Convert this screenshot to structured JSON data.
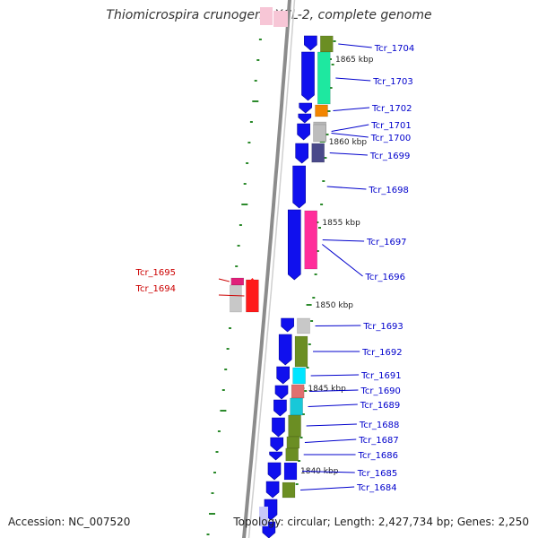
{
  "title": "Thiomicrospira crunogena XCL-2, complete genome",
  "footer": {
    "accession": "Accession: NC_007520",
    "topology": "Topology: circular; Length: 2,427,734 bp; Genes: 2,250"
  },
  "colors": {
    "backbone": "#8c8c8c",
    "tick_green": "#2c8a2c",
    "label_blue": "#0000cc",
    "label_red": "#cc0000",
    "kbp_text": "#222222",
    "gene_blue": "#1010ee",
    "gene_red": "#ff1a1a"
  },
  "scale_marks": [
    "1865 kbp",
    "1860 kbp",
    "1855 kbp",
    "1850 kbp",
    "1845 kbp",
    "1840 kbp"
  ],
  "genes": [
    {
      "label": "Tcr_1704",
      "strand": "+",
      "color": "#6b8e23"
    },
    {
      "label": "Tcr_1703",
      "strand": "+",
      "color": "#1ee8a0"
    },
    {
      "label": "Tcr_1702",
      "strand": "+",
      "color": "#f28500"
    },
    {
      "label": "Tcr_1701",
      "strand": "+",
      "color": "#b8b8b8"
    },
    {
      "label": "Tcr_1700",
      "strand": "+",
      "color": "#bdbdbd"
    },
    {
      "label": "Tcr_1699",
      "strand": "+",
      "color": "#4a4a8a"
    },
    {
      "label": "Tcr_1698",
      "strand": "+",
      "color": "#1010ee"
    },
    {
      "label": "Tcr_1697",
      "strand": "+",
      "color": "#ff2d9a"
    },
    {
      "label": "Tcr_1696",
      "strand": "+",
      "color": "#1010ee"
    },
    {
      "label": "Tcr_1695",
      "strand": "-",
      "color": "#e0207a"
    },
    {
      "label": "Tcr_1694",
      "strand": "-",
      "color": "#ff1a1a"
    },
    {
      "label": "Tcr_1693",
      "strand": "+",
      "color": "#c8c8c8"
    },
    {
      "label": "Tcr_1692",
      "strand": "+",
      "color": "#6b8e23"
    },
    {
      "label": "Tcr_1691",
      "strand": "+",
      "color": "#00e5ff"
    },
    {
      "label": "Tcr_1690",
      "strand": "+",
      "color": "#e07070"
    },
    {
      "label": "Tcr_1689",
      "strand": "+",
      "color": "#18c8d8"
    },
    {
      "label": "Tcr_1688",
      "strand": "+",
      "color": "#6b8e23"
    },
    {
      "label": "Tcr_1687",
      "strand": "+",
      "color": "#6b8e23"
    },
    {
      "label": "Tcr_1686",
      "strand": "+",
      "color": "#6b8e23"
    },
    {
      "label": "Tcr_1685",
      "strand": "+",
      "color": "#1010ee"
    },
    {
      "label": "Tcr_1684",
      "strand": "+",
      "color": "#6b8e23"
    }
  ]
}
